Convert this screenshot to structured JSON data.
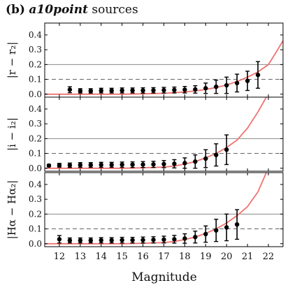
{
  "figure": {
    "title_prefix": "(b)",
    "title_italic": "a10point",
    "title_suffix": "sources",
    "xlabel": "Magnitude"
  },
  "colors": {
    "model_curve": "#f0726f",
    "points": "#000000",
    "frame": "#000000",
    "solid_ref": "#888888",
    "dashed_ref": "#666666"
  },
  "chart_data": [
    {
      "type": "scatter",
      "panel": "r",
      "ylabel": "|r − r₂|",
      "xlim": [
        11.3,
        22.7
      ],
      "ylim": [
        -0.02,
        0.48
      ],
      "xticks": [
        12,
        13,
        14,
        15,
        16,
        17,
        18,
        19,
        20,
        21,
        22
      ],
      "yticks": [
        0.0,
        0.1,
        0.2,
        0.3,
        0.4
      ],
      "yticklabels": [
        "0.0",
        "0.1",
        "0.2",
        "0.3",
        "0.4"
      ],
      "reference_lines": {
        "solid": 0.2,
        "dashed": 0.1
      },
      "points": {
        "x": [
          12.5,
          13.0,
          13.5,
          14.0,
          14.5,
          15.0,
          15.5,
          16.0,
          16.5,
          17.0,
          17.5,
          18.0,
          18.5,
          19.0,
          19.5,
          20.0,
          20.5,
          21.0,
          21.5
        ],
        "y": [
          0.03,
          0.022,
          0.022,
          0.024,
          0.024,
          0.025,
          0.025,
          0.025,
          0.026,
          0.027,
          0.028,
          0.03,
          0.032,
          0.04,
          0.05,
          0.06,
          0.075,
          0.09,
          0.13
        ],
        "err": [
          0.02,
          0.015,
          0.015,
          0.016,
          0.016,
          0.017,
          0.017,
          0.018,
          0.018,
          0.019,
          0.02,
          0.022,
          0.025,
          0.035,
          0.045,
          0.055,
          0.06,
          0.065,
          0.09
        ]
      },
      "curve": {
        "x": [
          11.3,
          12,
          13,
          14,
          15,
          16,
          17,
          17.5,
          18,
          18.5,
          19,
          19.5,
          20,
          20.5,
          21,
          21.5,
          22,
          22.4,
          22.7
        ],
        "y": [
          0.0,
          0.0,
          0.0,
          0.0,
          0.0,
          0.002,
          0.006,
          0.01,
          0.015,
          0.022,
          0.032,
          0.045,
          0.062,
          0.085,
          0.115,
          0.15,
          0.2,
          0.29,
          0.36
        ]
      }
    },
    {
      "type": "scatter",
      "panel": "i",
      "ylabel": "|i − i₂|",
      "xlim": [
        11.3,
        22.7
      ],
      "ylim": [
        -0.02,
        0.48
      ],
      "xticks": [
        12,
        13,
        14,
        15,
        16,
        17,
        18,
        19,
        20,
        21,
        22
      ],
      "yticks": [
        0.0,
        0.1,
        0.2,
        0.3,
        0.4
      ],
      "yticklabels": [
        "0.0",
        "0.1",
        "0.2",
        "0.3",
        "0.4"
      ],
      "reference_lines": {
        "solid": 0.2,
        "dashed": 0.1
      },
      "points": {
        "x": [
          11.5,
          12.0,
          12.5,
          13.0,
          13.5,
          14.0,
          14.5,
          15.0,
          15.5,
          16.0,
          16.5,
          17.0,
          17.5,
          18.0,
          18.5,
          19.0,
          19.5,
          20.0
        ],
        "y": [
          0.018,
          0.02,
          0.02,
          0.022,
          0.022,
          0.023,
          0.023,
          0.024,
          0.024,
          0.025,
          0.026,
          0.028,
          0.03,
          0.035,
          0.045,
          0.065,
          0.09,
          0.125
        ],
        "err": [
          0.008,
          0.013,
          0.015,
          0.016,
          0.016,
          0.017,
          0.017,
          0.018,
          0.019,
          0.02,
          0.021,
          0.024,
          0.028,
          0.035,
          0.045,
          0.06,
          0.075,
          0.1
        ]
      },
      "curve": {
        "x": [
          11.3,
          12,
          13,
          14,
          15,
          16,
          17,
          17.5,
          18,
          18.5,
          19,
          19.5,
          20,
          20.5,
          21,
          21.5,
          21.9
        ],
        "y": [
          0.0,
          0.0,
          0.0,
          0.0,
          0.0,
          0.003,
          0.008,
          0.015,
          0.028,
          0.045,
          0.07,
          0.1,
          0.14,
          0.19,
          0.27,
          0.38,
          0.48
        ]
      }
    },
    {
      "type": "scatter",
      "panel": "halpha",
      "ylabel": "|Hα − Hα₂|",
      "xlim": [
        11.3,
        22.7
      ],
      "ylim": [
        -0.02,
        0.48
      ],
      "xticks": [
        12,
        13,
        14,
        15,
        16,
        17,
        18,
        19,
        20,
        21,
        22
      ],
      "xticklabels": [
        "12",
        "13",
        "14",
        "15",
        "16",
        "17",
        "18",
        "19",
        "20",
        "21",
        "22"
      ],
      "yticks": [
        0.0,
        0.1,
        0.2,
        0.3,
        0.4
      ],
      "yticklabels": [
        "0.0",
        "0.1",
        "0.2",
        "0.3",
        "0.4"
      ],
      "reference_lines": {
        "solid": 0.2,
        "dashed": 0.1
      },
      "points": {
        "x": [
          12.0,
          12.5,
          13.0,
          13.5,
          14.0,
          14.5,
          15.0,
          15.5,
          16.0,
          16.5,
          17.0,
          17.5,
          18.0,
          18.5,
          19.0,
          19.5,
          20.0,
          20.5
        ],
        "y": [
          0.03,
          0.022,
          0.022,
          0.022,
          0.023,
          0.023,
          0.024,
          0.024,
          0.025,
          0.026,
          0.028,
          0.03,
          0.035,
          0.045,
          0.065,
          0.09,
          0.11,
          0.13
        ],
        "err": [
          0.025,
          0.017,
          0.017,
          0.017,
          0.018,
          0.018,
          0.019,
          0.019,
          0.02,
          0.021,
          0.023,
          0.026,
          0.032,
          0.04,
          0.055,
          0.075,
          0.09,
          0.1
        ]
      },
      "curve": {
        "x": [
          11.3,
          12,
          13,
          14,
          15,
          16,
          17,
          17.5,
          18,
          18.5,
          19,
          19.5,
          20,
          20.5,
          21,
          21.5,
          21.9
        ],
        "y": [
          0.0,
          0.0,
          0.0,
          0.0,
          0.0,
          0.003,
          0.008,
          0.015,
          0.028,
          0.045,
          0.07,
          0.1,
          0.14,
          0.19,
          0.25,
          0.35,
          0.48
        ]
      }
    }
  ]
}
